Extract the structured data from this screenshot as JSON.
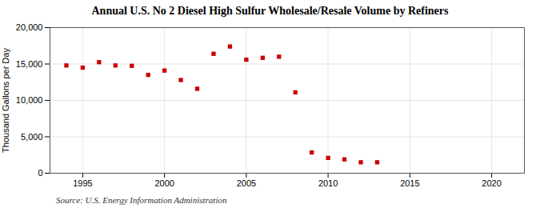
{
  "chart_data": {
    "type": "scatter",
    "title": "Annual U.S. No 2 Diesel High Sulfur Wholesale/Resale Volume by Refiners",
    "ylabel": "Thousand Gallons per Day",
    "annotations": [
      "Source: U.S. Energy Information Administration"
    ],
    "x": [
      1994,
      1995,
      1996,
      1997,
      1998,
      1999,
      2000,
      2001,
      2002,
      2003,
      2004,
      2005,
      2006,
      2007,
      2008,
      2009,
      2010,
      2011,
      2012,
      2013
    ],
    "values": [
      14800,
      14500,
      15250,
      14800,
      14750,
      13500,
      14100,
      12800,
      11600,
      16400,
      17400,
      15600,
      15850,
      16000,
      11100,
      2850,
      2100,
      1900,
      1500,
      1500
    ],
    "color": "#cc0000",
    "marker": "square",
    "xlim": [
      1993,
      2022
    ],
    "xticks": [
      1995,
      2000,
      2005,
      2010,
      2015,
      2020
    ],
    "ylim": [
      0,
      20000
    ],
    "yticks": [
      0,
      {
        "value": 5000,
        "label": "5,000"
      },
      {
        "value": 10000,
        "label": "10,000"
      },
      {
        "value": 15000,
        "label": "15,000"
      },
      {
        "value": 20000,
        "label": "20,000"
      }
    ],
    "grid": true
  }
}
